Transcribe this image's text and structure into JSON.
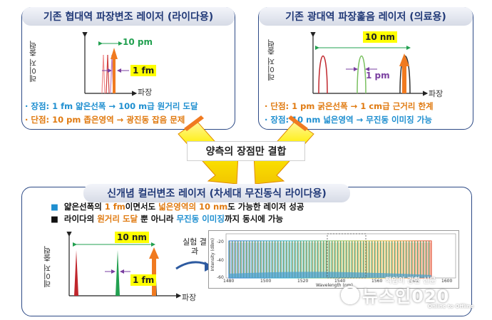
{
  "panel_narrow": {
    "title": "기존 협대역 파장변조 레이저 (라이다용)",
    "y_label": "레이저 출력",
    "x_label": "파장",
    "range_label": "10 pm",
    "width_label": "1 fm",
    "pro": "· 장점: 1 fm 얇은선폭 →  100 m급 원거리 도달",
    "con": "· 단점: 10 pm 좁은영역 →  광진동 잡음 문제"
  },
  "panel_wide": {
    "title": "기존 광대역 파장훑음 레이저 (의료용)",
    "y_label": "레이저 출력",
    "x_label": "파장",
    "range_label": "10 nm",
    "width_label": "1 pm",
    "con": "· 단점: 1 pm 굵은선폭 → 1 cm급 근거리 한계",
    "pro": "· 장점: 10 nm 넓은영역 → 무진동 이미징 가능"
  },
  "combine_label": "양측의 장점만 결합",
  "panel_new": {
    "title": "신개념 컬러변조 레이저 (차세대 무진동식 라이다용)",
    "line1": {
      "pre": "얇은선폭의 ",
      "hl1": "1 fm",
      "mid": "이면서도 ",
      "hl2": "넓은영역의 10 nm",
      "post": "도 가능한 레이저 성공"
    },
    "line2": {
      "pre": "라이다의 ",
      "hl1": "원거리 도달",
      "mid": " 뿐 아니라 ",
      "hl2": "무진동 이미징",
      "post": "까지 동시에 가능"
    },
    "y_label": "레이저 출력",
    "x_label": "파장",
    "range_label": "10 nm",
    "width_label": "1 fm",
    "experiment_label": "실험 결과",
    "spectrum": {
      "y_axis_title": "Intensity (dBm)",
      "x_axis_title": "Wavelength (nm)",
      "y_ticks": [
        "-20",
        "-40",
        "-60"
      ],
      "x_ticks": [
        "1480",
        "1500",
        "1520",
        "1540",
        "1560",
        "1580",
        "1600"
      ]
    }
  },
  "watermark": {
    "tagline": "책임이 강한 신문",
    "brand": "뉴스인020",
    "sub": "Online to Offline"
  },
  "colors": {
    "frame": "#2d4a86",
    "orange_text": "#e07a10",
    "blue_text": "#1f8fd0",
    "arrow_yellow": "#ffee00",
    "arrow_orange": "#f07a20",
    "peak_red": "#c0262c",
    "peak_green": "#22a050"
  }
}
